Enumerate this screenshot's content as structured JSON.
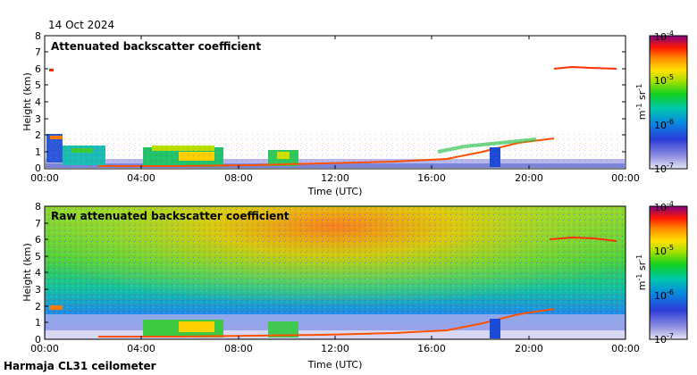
{
  "header": {
    "date": "14 Oct 2024"
  },
  "footer": {
    "station": "Harmaja CL31 ceilometer"
  },
  "chart_data": [
    {
      "type": "heatmap",
      "title": "Attenuated backscatter coefficient",
      "xlabel": "Time (UTC)",
      "ylabel": "Height (km)",
      "x_ticks": [
        "00:00",
        "04:00",
        "08:00",
        "12:00",
        "16:00",
        "20:00",
        "00:00"
      ],
      "y_ticks": [
        "0",
        "1",
        "2",
        "3",
        "4",
        "5",
        "6",
        "7",
        "8"
      ],
      "xlim_hours": [
        0,
        24
      ],
      "ylim_km": [
        0,
        8
      ],
      "colorbar": {
        "label_base": "m",
        "label_exp1": "-1",
        "label_mid": " sr",
        "label_exp2": "-1",
        "ticks": [
          {
            "base": "10",
            "exp": "-4"
          },
          {
            "base": "10",
            "exp": "-5"
          },
          {
            "base": "10",
            "exp": "-6"
          },
          {
            "base": "10",
            "exp": "-7"
          }
        ],
        "range_exponents": [
          -7,
          -4
        ]
      },
      "features": [
        {
          "name": "boundary-layer-aerosol",
          "start_hours": 0,
          "end_hours": 24,
          "top_km": 0.4
        },
        {
          "name": "low-cloud-layer",
          "start_hours": 0,
          "end_hours": 20.5,
          "height_km_start": 0.1,
          "height_km_end": 1.8
        },
        {
          "name": "elevated-cloud-layer",
          "start_hours": 21.5,
          "end_hours": 23.3,
          "height_km": 6.0
        }
      ]
    },
    {
      "type": "heatmap",
      "title": "Raw attenuated backscatter coefficient",
      "xlabel": "Time (UTC)",
      "ylabel": "Height (km)",
      "x_ticks": [
        "00:00",
        "04:00",
        "08:00",
        "12:00",
        "16:00",
        "20:00",
        "00:00"
      ],
      "y_ticks": [
        "0",
        "1",
        "2",
        "3",
        "4",
        "5",
        "6",
        "7",
        "8"
      ],
      "xlim_hours": [
        0,
        24
      ],
      "ylim_km": [
        0,
        8
      ],
      "colorbar": {
        "label_base": "m",
        "label_exp1": "-1",
        "label_mid": " sr",
        "label_exp2": "-1",
        "ticks": [
          {
            "base": "10",
            "exp": "-4"
          },
          {
            "base": "10",
            "exp": "-5"
          },
          {
            "base": "10",
            "exp": "-6"
          },
          {
            "base": "10",
            "exp": "-7"
          }
        ],
        "range_exponents": [
          -7,
          -4
        ]
      },
      "features": [
        {
          "name": "noise-background",
          "start_hours": 0,
          "end_hours": 24,
          "top_km": 8
        },
        {
          "name": "daytime-solar-noise",
          "start_hours": 7,
          "end_hours": 17,
          "peak_hours": 12
        },
        {
          "name": "low-cloud-layer",
          "start_hours": 0,
          "end_hours": 20.5,
          "height_km_start": 0.1,
          "height_km_end": 1.8
        },
        {
          "name": "elevated-cloud-layer",
          "start_hours": 21,
          "end_hours": 23.3,
          "height_km": 6.0
        }
      ]
    }
  ]
}
